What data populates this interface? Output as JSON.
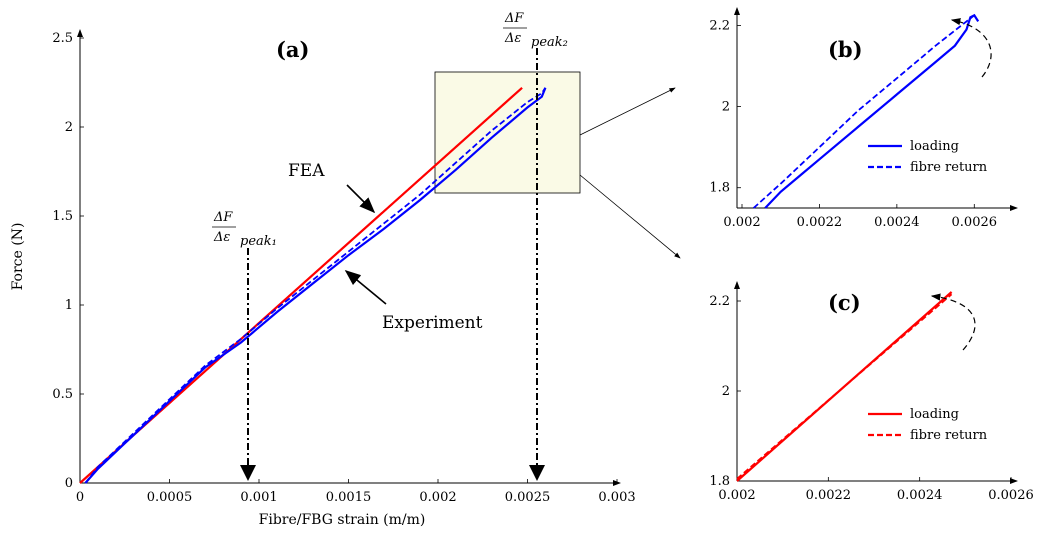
{
  "chart_data": [
    {
      "panel": "(a)",
      "type": "line",
      "xlabel": "Fibre/FBG strain (m/m)",
      "ylabel": "Force (N)",
      "xlim": [
        0,
        0.003
      ],
      "ylim": [
        0,
        2.5
      ],
      "xticks": [
        "0",
        "0.0005",
        "0.001",
        "0.0015",
        "0.002",
        "0.0025",
        "0.003"
      ],
      "yticks": [
        "0",
        "0.5",
        "1",
        "1.5",
        "2",
        "2.5"
      ],
      "series": [
        {
          "color": "#ff0000",
          "style": "solid",
          "x": [
            0,
            0.00247
          ],
          "y": [
            0,
            2.22
          ]
        },
        {
          "color": "#ff0000",
          "style": "dashed",
          "x": [
            0,
            0.00247
          ],
          "y": [
            0,
            2.22
          ]
        },
        {
          "color": "#0000ff",
          "style": "solid",
          "x": [
            3e-05,
            0.0001,
            0.0003,
            0.0005,
            0.0007,
            0.0009,
            0.0011,
            0.0013,
            0.0015,
            0.0017,
            0.0019,
            0.0021,
            0.0023,
            0.0025,
            0.00258,
            0.0026
          ],
          "y": [
            0,
            0.08,
            0.27,
            0.46,
            0.65,
            0.79,
            0.96,
            1.12,
            1.28,
            1.43,
            1.59,
            1.76,
            1.94,
            2.11,
            2.17,
            2.22
          ]
        },
        {
          "color": "#0000ff",
          "style": "dashed",
          "x": [
            3e-05,
            0.0001,
            0.0003,
            0.0005,
            0.0007,
            0.0009,
            0.0011,
            0.0013,
            0.0015,
            0.0017,
            0.0019,
            0.0021,
            0.0023,
            0.0025,
            0.00258,
            0.0026
          ],
          "y": [
            0,
            0.09,
            0.28,
            0.47,
            0.66,
            0.81,
            0.98,
            1.14,
            1.3,
            1.46,
            1.62,
            1.8,
            1.98,
            2.14,
            2.19,
            2.22
          ]
        }
      ],
      "annotations": {
        "fea": "FEA",
        "experiment": "Experiment",
        "peak1_num": "ΔF",
        "peak1_den": "Δε",
        "peak1_sub": "peak₁",
        "peak2_num": "ΔF",
        "peak2_den": "Δε",
        "peak2_sub": "peak₂"
      }
    },
    {
      "panel": "(b)",
      "type": "line",
      "xlim": [
        0.002,
        0.0027
      ],
      "ylim": [
        1.75,
        2.28
      ],
      "xticks": [
        "0.002",
        "0.0022",
        "0.0024",
        "0.0026"
      ],
      "yticks": [
        "1.8",
        "2",
        "2.2"
      ],
      "legend": {
        "position": "lower-right",
        "entries": [
          "loading",
          "fibre return"
        ]
      },
      "series": [
        {
          "name": "loading",
          "color": "#0000ff",
          "style": "solid",
          "x": [
            0.00206,
            0.0021,
            0.00215,
            0.0022,
            0.0023,
            0.0024,
            0.0025,
            0.00255,
            0.00258,
            0.00259,
            0.0026,
            0.00261
          ],
          "y": [
            1.75,
            1.79,
            1.83,
            1.87,
            1.95,
            2.03,
            2.11,
            2.15,
            2.19,
            2.22,
            2.225,
            2.21
          ]
        },
        {
          "name": "fibre return",
          "color": "#0000ff",
          "style": "dashed",
          "x": [
            0.00203,
            0.0021,
            0.0022,
            0.0023,
            0.0024,
            0.0025,
            0.00258,
            0.0026
          ],
          "y": [
            1.75,
            1.81,
            1.9,
            1.99,
            2.07,
            2.15,
            2.21,
            2.225
          ]
        }
      ]
    },
    {
      "panel": "(c)",
      "type": "line",
      "xlim": [
        0.002,
        0.0026
      ],
      "ylim": [
        1.8,
        2.28
      ],
      "xticks": [
        "0.002",
        "0.0022",
        "0.0024",
        "0.0026"
      ],
      "yticks": [
        "1.8",
        "2",
        "2.2"
      ],
      "legend": {
        "position": "lower-right",
        "entries": [
          "loading",
          "fibre return"
        ]
      },
      "series": [
        {
          "name": "loading",
          "color": "#ff0000",
          "style": "solid",
          "x": [
            0.002,
            0.00247
          ],
          "y": [
            1.8,
            2.22
          ]
        },
        {
          "name": "fibre return",
          "color": "#ff0000",
          "style": "dashed",
          "x": [
            0.002,
            0.00247
          ],
          "y": [
            1.805,
            2.215
          ]
        }
      ]
    }
  ]
}
